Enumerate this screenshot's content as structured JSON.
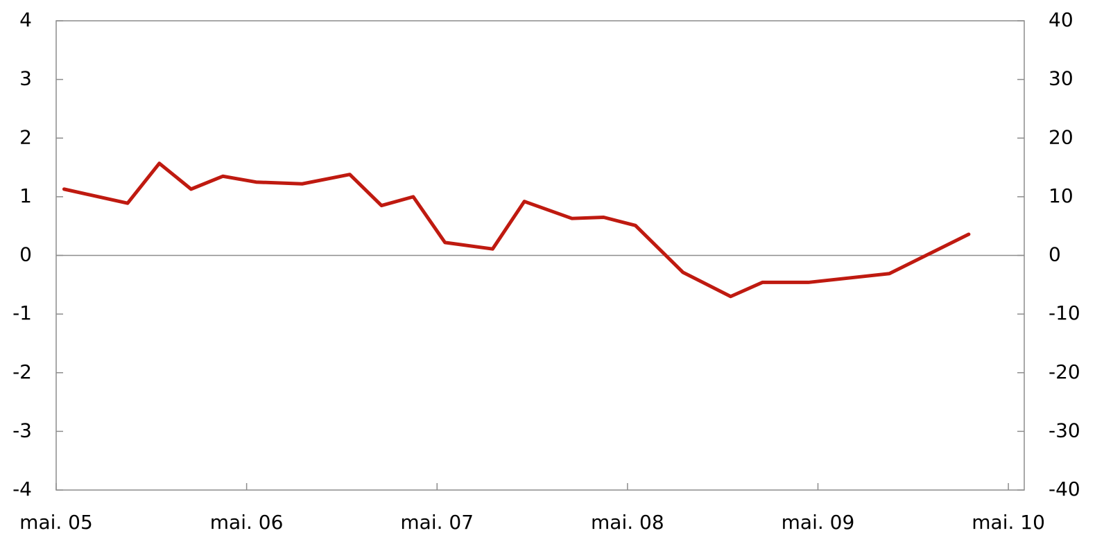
{
  "chart_data": {
    "type": "line",
    "x": [
      0.5,
      4.5,
      6.5,
      8.5,
      10.5,
      12.6,
      15.5,
      18.5,
      20.5,
      22.5,
      24.5,
      27.5,
      29.5,
      32.5,
      34.5,
      36.5,
      39.5,
      42.5,
      44.5,
      47.4,
      52.5,
      57.5
    ],
    "values": [
      1.13,
      0.89,
      1.57,
      1.13,
      1.35,
      1.25,
      1.22,
      1.38,
      0.85,
      1.0,
      0.22,
      0.11,
      0.92,
      0.63,
      0.65,
      0.51,
      -0.29,
      -0.7,
      -0.46,
      -0.46,
      -0.31,
      0.36
    ],
    "color": "#bf1a10",
    "xlim": [
      0,
      61
    ],
    "xticks": [
      {
        "value": 0,
        "label": "mai. 05"
      },
      {
        "value": 12,
        "label": "mai. 06"
      },
      {
        "value": 24,
        "label": "mai. 07"
      },
      {
        "value": 36,
        "label": "mai. 08"
      },
      {
        "value": 48,
        "label": "mai. 09"
      },
      {
        "value": 60,
        "label": "mai. 10"
      }
    ],
    "ylim": [
      -4,
      4
    ],
    "yticks": [
      -4,
      -3,
      -2,
      -1,
      0,
      1,
      2,
      3,
      4
    ],
    "y2lim": [
      -40,
      40
    ],
    "y2ticks": [
      -40,
      -30,
      -20,
      -10,
      0,
      10,
      20,
      30,
      40
    ]
  }
}
